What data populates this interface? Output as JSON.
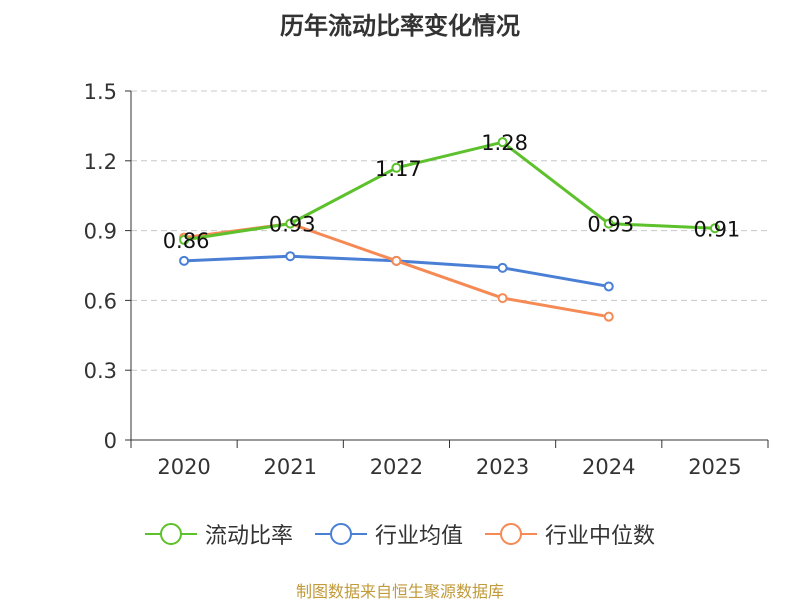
{
  "title": "历年流动比率变化情况",
  "source": "制图数据来自恒生聚源数据库",
  "chart_data": {
    "type": "line",
    "title": "历年流动比率变化情况",
    "categories": [
      "2020",
      "2021",
      "2022",
      "2023",
      "2024",
      "2025"
    ],
    "ylim": [
      0,
      1.5
    ],
    "yticks": [
      0,
      0.3,
      0.6,
      0.9,
      1.2,
      1.5
    ],
    "ytick_labels": [
      "0",
      "0.3",
      "0.6",
      "0.9",
      "1.2",
      "1.5"
    ],
    "grid": true,
    "legend_position": "bottom",
    "series": [
      {
        "name": "流动比率",
        "color": "#5cc12b",
        "values": [
          0.86,
          0.93,
          1.17,
          1.28,
          0.93,
          0.91
        ],
        "labels": [
          "0.86",
          "0.93",
          "1.17",
          "1.28",
          "0.93",
          "0.91"
        ]
      },
      {
        "name": "行业均值",
        "color": "#4a7fd6",
        "values": [
          0.77,
          0.79,
          0.77,
          0.74,
          0.66,
          null
        ]
      },
      {
        "name": "行业中位数",
        "color": "#f58a55",
        "values": [
          0.87,
          0.93,
          0.77,
          0.61,
          0.53,
          null
        ]
      }
    ]
  }
}
